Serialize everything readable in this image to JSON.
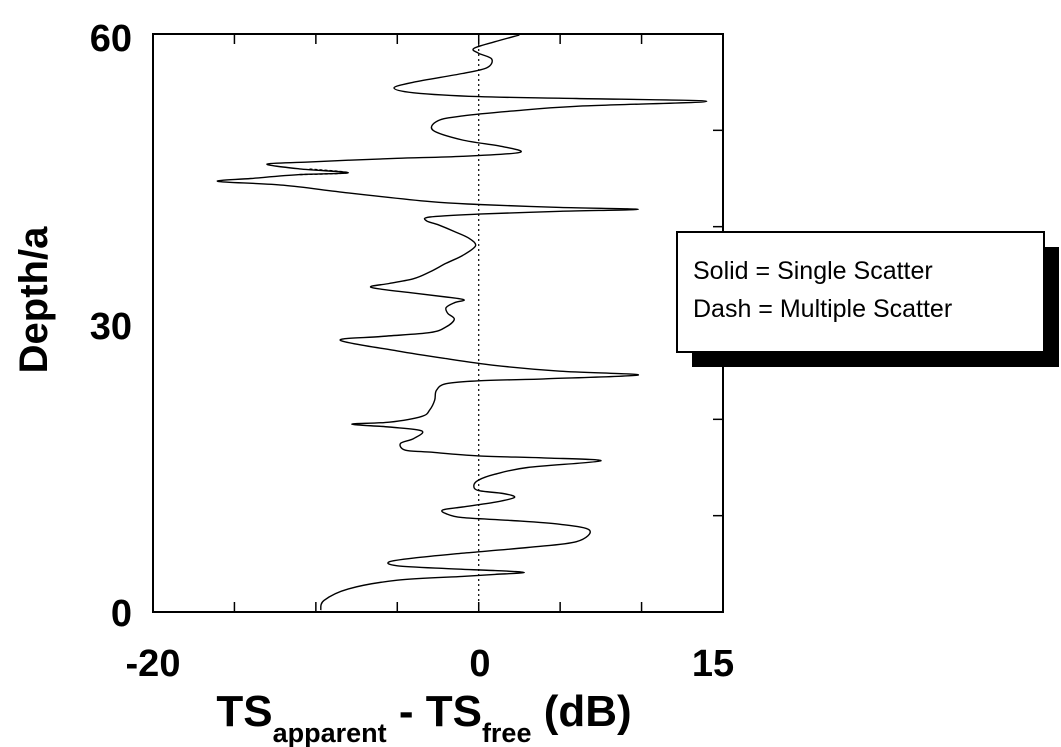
{
  "chart_data": {
    "type": "line",
    "xlabel": {
      "main1": "TS",
      "sub1": "apparent",
      "mid": " - TS",
      "sub2": "free",
      "tail": " (dB)"
    },
    "ylabel": "Depth/a",
    "xlim": [
      -20,
      15
    ],
    "ylim": [
      0,
      60
    ],
    "x_tick_labels": [
      "-20",
      "0",
      "15"
    ],
    "x_tick_label_values": [
      -20,
      0,
      15
    ],
    "y_tick_labels": [
      "0",
      "30",
      "60"
    ],
    "y_tick_label_values": [
      0,
      30,
      60
    ],
    "x_minor_ticks": [
      -15,
      -10,
      -5,
      0,
      5,
      10
    ],
    "y_minor_ticks": [
      10,
      20,
      40,
      50
    ],
    "zero_line": {
      "x": 0,
      "style": "dotted"
    },
    "legend": {
      "lines": [
        "Solid = Single Scatter",
        "Dash = Multiple Scatter"
      ],
      "placement": "right"
    },
    "series": [
      {
        "style": "solid",
        "points": [
          [
            -9.7,
            0.2
          ],
          [
            -9.5,
            1.2
          ],
          [
            -8.0,
            2.4
          ],
          [
            -5.0,
            3.3
          ],
          [
            -1.0,
            3.7
          ],
          [
            1.0,
            3.9
          ],
          [
            2.8,
            4.1
          ],
          [
            1.0,
            4.3
          ],
          [
            -2.0,
            4.5
          ],
          [
            -5.0,
            4.8
          ],
          [
            -5.5,
            5.2
          ],
          [
            -4.0,
            5.6
          ],
          [
            -1.0,
            6.1
          ],
          [
            3.0,
            6.7
          ],
          [
            6.0,
            7.3
          ],
          [
            6.8,
            8.5
          ],
          [
            5.0,
            9.1
          ],
          [
            2.0,
            9.5
          ],
          [
            -1.0,
            9.8
          ],
          [
            -2.0,
            10.2
          ],
          [
            -2.2,
            10.6
          ],
          [
            -1.0,
            10.9
          ],
          [
            1.0,
            11.4
          ],
          [
            2.2,
            11.9
          ],
          [
            1.5,
            12.3
          ],
          [
            0.0,
            12.6
          ],
          [
            -0.3,
            13.1
          ],
          [
            0.0,
            13.7
          ],
          [
            1.0,
            14.3
          ],
          [
            3.0,
            15.0
          ],
          [
            7.5,
            15.7
          ],
          [
            4.0,
            16.0
          ],
          [
            0.0,
            16.2
          ],
          [
            -3.0,
            16.6
          ],
          [
            -4.5,
            16.8
          ],
          [
            -4.8,
            17.5
          ],
          [
            -4.0,
            18.0
          ],
          [
            -3.5,
            18.8
          ],
          [
            -5.5,
            19.2
          ],
          [
            -7.8,
            19.5
          ],
          [
            -5.5,
            19.7
          ],
          [
            -3.5,
            20.3
          ],
          [
            -3.0,
            21.0
          ],
          [
            -2.7,
            22.0
          ],
          [
            -2.6,
            23.0
          ],
          [
            -2.0,
            23.7
          ],
          [
            0.0,
            24.0
          ],
          [
            4.0,
            24.2
          ],
          [
            9.8,
            24.6
          ],
          [
            5.0,
            25.0
          ],
          [
            1.0,
            25.6
          ],
          [
            -2.0,
            26.3
          ],
          [
            -5.0,
            27.1
          ],
          [
            -8.5,
            28.2
          ],
          [
            -6.0,
            28.6
          ],
          [
            -3.0,
            29.0
          ],
          [
            -2.0,
            29.6
          ],
          [
            -1.5,
            30.4
          ],
          [
            -1.9,
            31.0
          ],
          [
            -2.0,
            31.6
          ],
          [
            -1.5,
            32.1
          ],
          [
            -0.9,
            32.4
          ],
          [
            -2.0,
            32.7
          ],
          [
            -4.0,
            33.1
          ],
          [
            -6.6,
            33.7
          ],
          [
            -5.5,
            34.1
          ],
          [
            -4.0,
            34.6
          ],
          [
            -3.0,
            35.3
          ],
          [
            -2.0,
            36.2
          ],
          [
            -1.0,
            37.0
          ],
          [
            -0.2,
            38.0
          ],
          [
            -0.6,
            38.8
          ],
          [
            -1.5,
            39.5
          ],
          [
            -2.5,
            40.2
          ],
          [
            -3.2,
            40.6
          ],
          [
            -3.0,
            41.0
          ],
          [
            0.0,
            41.3
          ],
          [
            5.0,
            41.6
          ],
          [
            9.8,
            41.8
          ],
          [
            5.0,
            42.0
          ],
          [
            0.0,
            42.3
          ],
          [
            -3.0,
            42.6
          ],
          [
            -8.0,
            43.5
          ],
          [
            -12.0,
            44.3
          ],
          [
            -16.0,
            44.7
          ],
          [
            -14.0,
            45.0
          ],
          [
            -11.0,
            45.4
          ],
          [
            -8.0,
            45.6
          ],
          [
            -11.0,
            46.0
          ],
          [
            -13.0,
            46.5
          ],
          [
            -10.5,
            46.7
          ],
          [
            -8.0,
            46.9
          ],
          [
            -5.0,
            47.1
          ],
          [
            -1.0,
            47.3
          ],
          [
            2.5,
            47.7
          ],
          [
            1.5,
            48.3
          ],
          [
            -1.0,
            49.0
          ],
          [
            -2.8,
            50.0
          ],
          [
            -2.5,
            51.0
          ],
          [
            -1.0,
            51.5
          ],
          [
            2.0,
            52.0
          ],
          [
            6.0,
            52.5
          ],
          [
            14.0,
            53.0
          ],
          [
            6.0,
            53.3
          ],
          [
            0.0,
            53.5
          ],
          [
            -4.0,
            53.9
          ],
          [
            -5.2,
            54.4
          ],
          [
            -4.0,
            55.0
          ],
          [
            -1.0,
            55.9
          ],
          [
            0.5,
            56.5
          ],
          [
            0.8,
            57.4
          ],
          [
            0.0,
            58.0
          ],
          [
            -0.3,
            58.5
          ],
          [
            1.0,
            59.2
          ],
          [
            2.5,
            59.9
          ]
        ]
      },
      {
        "style": "dashed",
        "points": [
          [
            -11.0,
            45.4
          ],
          [
            -8.0,
            45.6
          ],
          [
            -10.5,
            46.0
          ]
        ]
      }
    ]
  }
}
